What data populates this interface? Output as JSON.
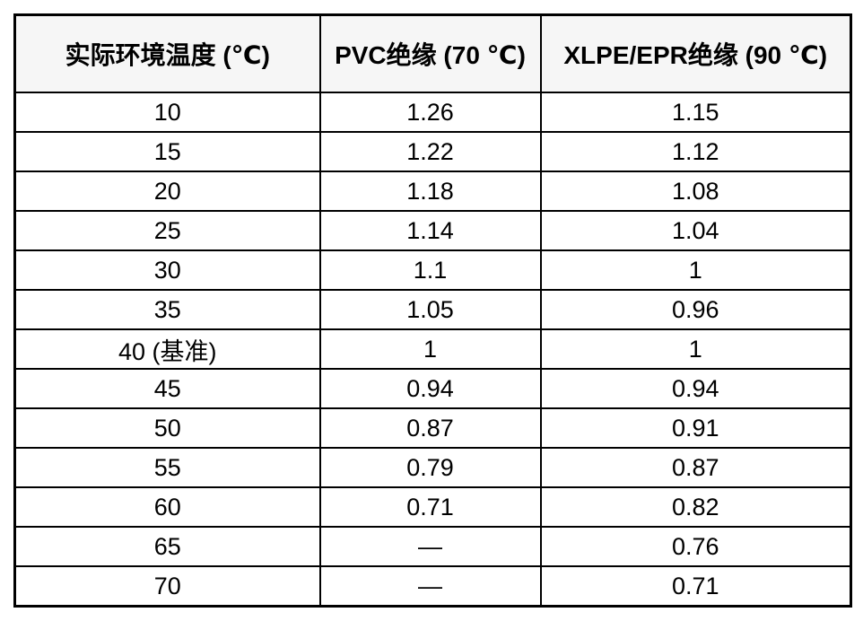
{
  "chart_data": {
    "type": "table",
    "headers": [
      "实际环境温度 (℃)",
      "PVC绝缘 (70 ℃)",
      "XLPE/EPR绝缘 (90 ℃)"
    ],
    "rows": [
      [
        "10",
        "1.26",
        "1.15"
      ],
      [
        "15",
        "1.22",
        "1.12"
      ],
      [
        "20",
        "1.18",
        "1.08"
      ],
      [
        "25",
        "1.14",
        "1.04"
      ],
      [
        "30",
        "1.1",
        "1"
      ],
      [
        "35",
        "1.05",
        "0.96"
      ],
      [
        "40 (基准)",
        "1",
        "1"
      ],
      [
        "45",
        "0.94",
        "0.94"
      ],
      [
        "50",
        "0.87",
        "0.91"
      ],
      [
        "55",
        "0.79",
        "0.87"
      ],
      [
        "60",
        "0.71",
        "0.82"
      ],
      [
        "65",
        "—",
        "0.76"
      ],
      [
        "70",
        "—",
        "0.71"
      ]
    ]
  },
  "colors": {
    "border": "#000000",
    "header_background": "#f6f6f6",
    "body_background": "#ffffff",
    "text": "#000000"
  }
}
